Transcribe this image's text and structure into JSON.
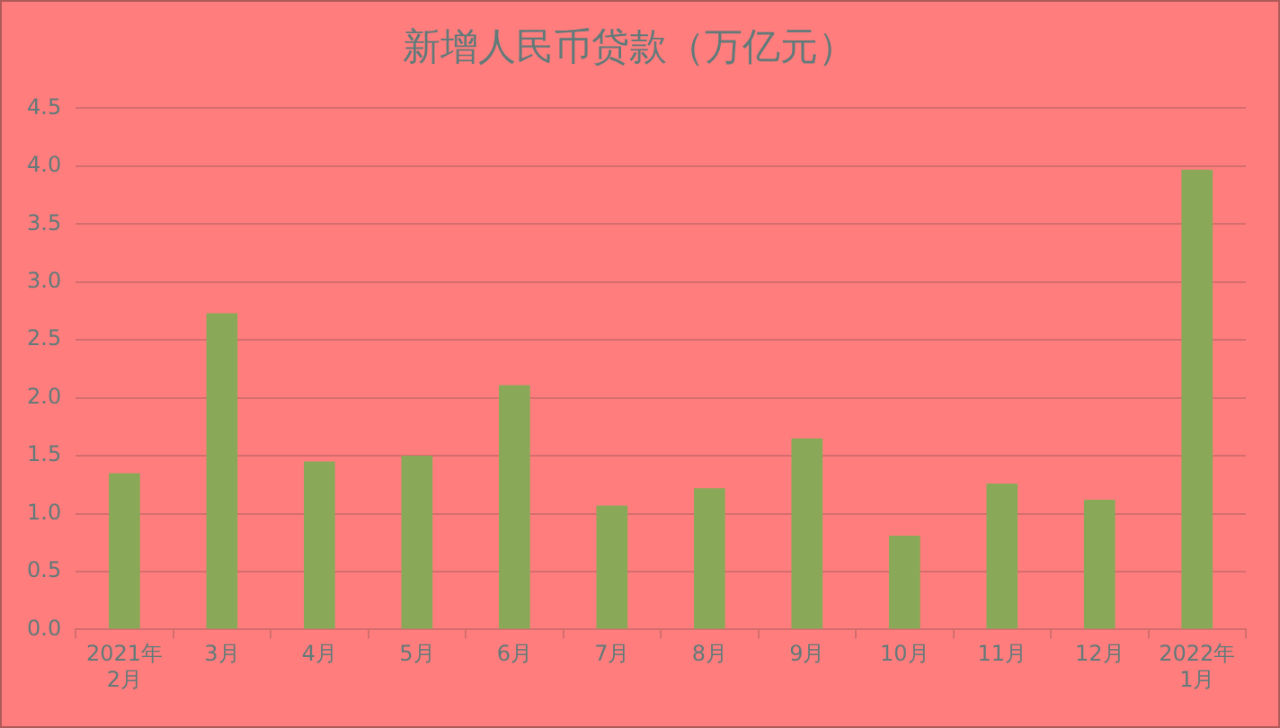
{
  "chart_data": {
    "type": "bar",
    "title": "新增人民币贷款（万亿元）",
    "categories": [
      "2021年\n2月",
      "3月",
      "4月",
      "5月",
      "6月",
      "7月",
      "8月",
      "9月",
      "10月",
      "11月",
      "12月",
      "2022年\n1月"
    ],
    "values": [
      1.35,
      2.73,
      1.45,
      1.5,
      2.11,
      1.07,
      1.22,
      1.65,
      0.81,
      1.26,
      1.12,
      3.97
    ],
    "color": "#8aa958",
    "ylim": [
      0,
      4.5
    ],
    "yticks": [
      {
        "value": 0,
        "label": "0.0"
      },
      0.5,
      {
        "value": 1,
        "label": "1.0"
      },
      1.5,
      {
        "value": 2,
        "label": "2.0"
      },
      2.5,
      {
        "value": 3,
        "label": "3.0"
      },
      3.5,
      {
        "value": 4,
        "label": "4.0"
      },
      4.5
    ],
    "grid": "y"
  }
}
